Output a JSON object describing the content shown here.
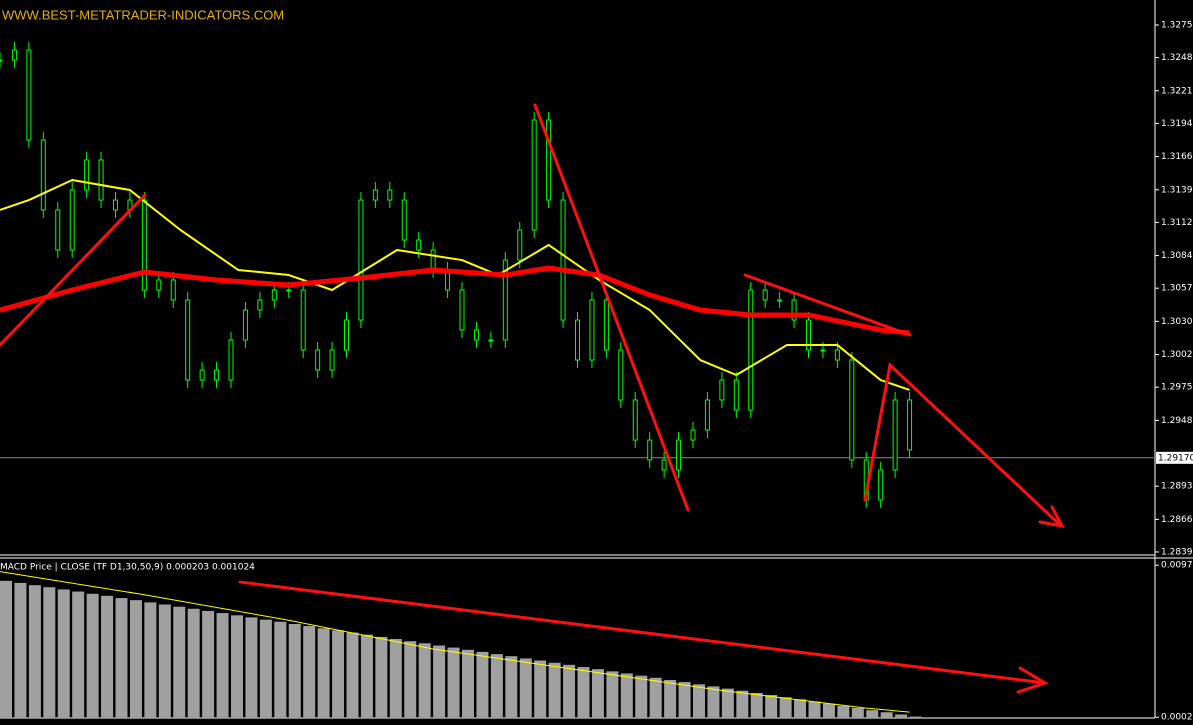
{
  "header": {
    "watermark": "WWW.BEST-METATRADER-INDICATORS.COM"
  },
  "chart_data": [
    {
      "type": "line",
      "ylim": [
        1.28365,
        1.32962
      ],
      "xlim": [
        0,
        160
      ],
      "yticks": [
        1.32755,
        1.32485,
        {
          "value": 1.3221,
          "label": "1.32210"
        },
        {
          "value": 1.3194,
          "label": "1.31940"
        },
        1.31665,
        {
          "value": 1.3139,
          "label": "1.31390"
        },
        {
          "value": 1.3112,
          "label": "1.31120"
        },
        1.30845,
        1.30575,
        {
          "value": 1.303,
          "label": "1.30300"
        },
        1.30025,
        1.29755,
        {
          "value": 1.2948,
          "label": "1.29480"
        },
        1.28935,
        {
          "value": 1.2866,
          "label": "1.28660"
        },
        {
          "value": 1.2839,
          "label": "1.28390"
        }
      ],
      "current_price": {
        "value": 1.2917,
        "label": "1.29170"
      },
      "series": [
        {
          "color": "#00ff00",
          "x": [
            0,
            2,
            4,
            6,
            8,
            10,
            12,
            14,
            16,
            18,
            20,
            22,
            24,
            26,
            28,
            30,
            32,
            34,
            36,
            38,
            40,
            42,
            44,
            46,
            48,
            50,
            52,
            54,
            56,
            58,
            60,
            62,
            64,
            66,
            68,
            70,
            72,
            74,
            76,
            78,
            80,
            82,
            84,
            86,
            88,
            90,
            92,
            94,
            96,
            98,
            100,
            102,
            104,
            106,
            108,
            110,
            112,
            114,
            116,
            118,
            120,
            122,
            124,
            126
          ],
          "values": [
            1.32465,
            1.32548,
            1.31802,
            1.31223,
            1.30891,
            1.31388,
            1.31637,
            1.31305,
            1.31223,
            1.31305,
            1.3056,
            1.30643,
            1.30477,
            1.29814,
            1.29897,
            1.29814,
            1.30146,
            1.30394,
            1.30477,
            1.3056,
            1.3056,
            1.30063,
            1.29897,
            1.30063,
            1.30311,
            1.31305,
            1.31388,
            1.31305,
            1.30974,
            1.30891,
            1.30726,
            1.3056,
            1.30229,
            1.30146,
            1.30146,
            1.30808,
            1.31057,
            1.31968,
            1.31305,
            1.30311,
            1.2998,
            1.30477,
            1.30063,
            1.29649,
            1.29317,
            1.29152,
            1.29069,
            1.29317,
            1.294,
            1.29649,
            1.29814,
            1.29566,
            1.3056,
            1.30477,
            1.30477,
            1.30311,
            1.30063,
            1.30063,
            1.2998,
            1.29152,
            1.28821,
            1.29069,
            1.29649,
            1.29235
          ]
        },
        {
          "color": "#ffff00",
          "x": [
            0,
            4,
            10,
            18,
            25,
            33,
            40,
            46,
            55,
            64,
            69,
            76,
            83,
            90,
            97,
            102,
            109,
            116,
            122,
            126
          ],
          "values": [
            1.31223,
            1.31305,
            1.31471,
            1.31388,
            1.31057,
            1.30726,
            1.30684,
            1.3056,
            1.30891,
            1.30808,
            1.30684,
            1.30933,
            1.30643,
            1.30394,
            1.2998,
            1.29856,
            1.30104,
            1.30104,
            1.29814,
            1.29732
          ]
        },
        {
          "color": "#ff0000",
          "x": [
            0,
            10,
            20,
            30,
            40,
            50,
            60,
            70,
            76,
            83,
            90,
            97,
            104,
            112,
            122,
            126
          ],
          "values": [
            1.30394,
            1.3056,
            1.30709,
            1.30643,
            1.30601,
            1.30659,
            1.30726,
            1.30684,
            1.30742,
            1.30684,
            1.30519,
            1.30394,
            1.30353,
            1.30353,
            1.30229,
            1.30204
          ]
        }
      ]
    },
    {
      "type": "bar",
      "title": "MACD Price | CLOSE  (TF D1,30,50,9) 0.000203 0.001024",
      "ylim": [
        0.00018,
        0.0102
      ],
      "xlim": [
        0,
        160
      ],
      "yticks": [
        0.00975,
        0.00023
      ],
      "color": "#a0a0a0",
      "x": [
        0,
        2,
        4,
        6,
        8,
        10,
        12,
        14,
        16,
        18,
        20,
        22,
        24,
        26,
        28,
        30,
        32,
        34,
        36,
        38,
        40,
        42,
        44,
        46,
        48,
        50,
        52,
        54,
        56,
        58,
        60,
        62,
        64,
        66,
        68,
        70,
        72,
        74,
        76,
        78,
        80,
        82,
        84,
        86,
        88,
        90,
        92,
        94,
        96,
        98,
        100,
        102,
        104,
        106,
        108,
        110,
        112,
        114,
        116,
        118,
        120,
        122,
        124,
        126
      ],
      "values": [
        0.00877,
        0.00864,
        0.0085,
        0.00837,
        0.00823,
        0.0081,
        0.00796,
        0.00783,
        0.00769,
        0.00756,
        0.00742,
        0.00729,
        0.00715,
        0.00702,
        0.00688,
        0.00675,
        0.00661,
        0.00648,
        0.00634,
        0.00621,
        0.00607,
        0.00594,
        0.0058,
        0.00567,
        0.00553,
        0.0054,
        0.00526,
        0.00513,
        0.00499,
        0.00486,
        0.00472,
        0.00459,
        0.00445,
        0.00432,
        0.00418,
        0.00405,
        0.00391,
        0.00378,
        0.00364,
        0.00351,
        0.00337,
        0.00324,
        0.0031,
        0.00297,
        0.00283,
        0.0027,
        0.00256,
        0.00243,
        0.00229,
        0.00216,
        0.00202,
        0.00189,
        0.00175,
        0.00162,
        0.00148,
        0.00135,
        0.00121,
        0.00108,
        0.00094,
        0.00081,
        0.00067,
        0.00054,
        0.0004,
        0.00027
      ],
      "signal": {
        "color": "#ffff00",
        "x": [
          0,
          20,
          40,
          60,
          80,
          100,
          120,
          126
        ],
        "values": [
          0.00935,
          0.0079,
          0.0063,
          0.0045,
          0.0032,
          0.0019,
          0.0008,
          0.00055
        ]
      }
    }
  ]
}
